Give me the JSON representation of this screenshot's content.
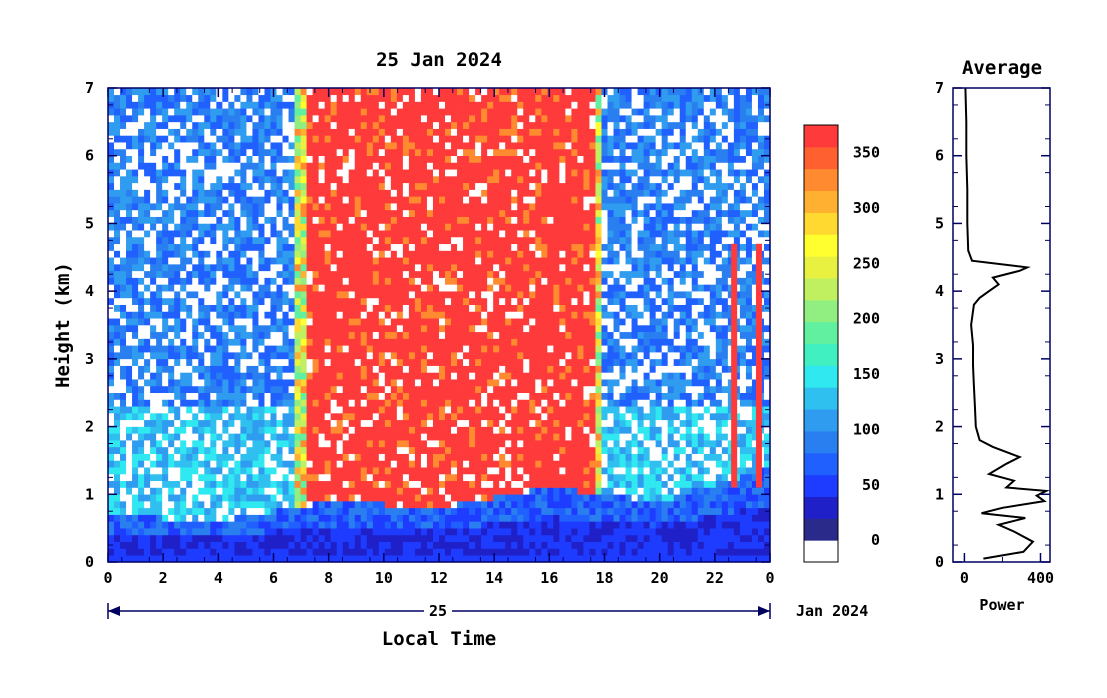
{
  "chart_data": [
    {
      "type": "heatmap",
      "title": "25 Jan 2024",
      "xlabel": "Local Time",
      "ylabel": "Height (km)",
      "x_ticks": [
        "0",
        "2",
        "4",
        "6",
        "8",
        "10",
        "12",
        "14",
        "16",
        "18",
        "20",
        "22",
        "0"
      ],
      "y_ticks": [
        "0",
        "1",
        "2",
        "3",
        "4",
        "5",
        "6",
        "7"
      ],
      "xlim": [
        0,
        24
      ],
      "ylim": [
        0,
        7
      ],
      "date_axis": {
        "day_label": "25",
        "month_year_label": "Jan 2024"
      },
      "colorbar": {
        "ticks": [
          "0",
          "50",
          "100",
          "150",
          "200",
          "250",
          "300",
          "350"
        ],
        "range": [
          0,
          375
        ],
        "colors": [
          "#ffffff",
          "#2a2a8a",
          "#2020c8",
          "#1e3cff",
          "#2060ff",
          "#2a7ff0",
          "#2f9cf0",
          "#30c0f0",
          "#30e8f0",
          "#40f0c0",
          "#60f0a0",
          "#90ef80",
          "#c0f060",
          "#e8f040",
          "#ffff30",
          "#ffd830",
          "#ffb030",
          "#ff8a30",
          "#ff6030",
          "#ff3a3a"
        ]
      },
      "features": {
        "boundary_layer_km": [
          [
            0,
            0.7
          ],
          [
            4,
            0.6
          ],
          [
            8,
            0.9
          ],
          [
            12,
            0.8
          ],
          [
            16,
            1.1
          ],
          [
            20,
            0.9
          ],
          [
            24,
            1.4
          ]
        ],
        "solar_background_hours": [
          6.8,
          18.0
        ],
        "cloud_spikes_hours": [
          22.7,
          23.6
        ]
      }
    },
    {
      "type": "line",
      "title": "Average",
      "xlabel": "Power",
      "x_ticks": [
        "0",
        "400"
      ],
      "y_ticks": [
        "0",
        "1",
        "2",
        "3",
        "4",
        "5",
        "6",
        "7"
      ],
      "xlim": [
        -60,
        450
      ],
      "ylim": [
        0,
        7
      ],
      "profile": {
        "height": [
          0.05,
          0.15,
          0.3,
          0.45,
          0.55,
          0.65,
          0.72,
          0.8,
          0.9,
          0.98,
          1.05,
          1.1,
          1.2,
          1.3,
          1.45,
          1.55,
          1.7,
          1.8,
          1.9,
          2.0,
          2.3,
          2.6,
          2.9,
          3.2,
          3.5,
          3.8,
          3.9,
          4.0,
          4.1,
          4.2,
          4.3,
          4.35,
          4.45,
          4.6,
          5.0,
          5.5,
          6.0,
          6.5,
          7.0
        ],
        "power": [
          100,
          310,
          360,
          260,
          180,
          320,
          90,
          200,
          420,
          380,
          430,
          220,
          260,
          130,
          220,
          290,
          150,
          80,
          70,
          60,
          55,
          50,
          45,
          45,
          35,
          50,
          80,
          130,
          180,
          150,
          290,
          330,
          40,
          20,
          15,
          15,
          10,
          10,
          5
        ]
      }
    }
  ]
}
